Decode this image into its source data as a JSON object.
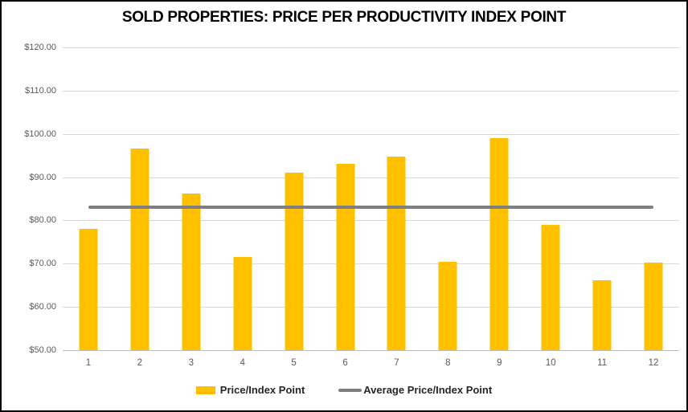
{
  "chart_data": {
    "type": "bar",
    "title": "SOLD PROPERTIES: PRICE PER PRODUCTIVITY INDEX POINT",
    "categories": [
      "1",
      "2",
      "3",
      "4",
      "5",
      "6",
      "7",
      "8",
      "9",
      "10",
      "11",
      "12"
    ],
    "series": [
      {
        "name": "Price/Index Point",
        "type": "bar",
        "color": "#FFC000",
        "values": [
          78.0,
          96.7,
          86.2,
          71.5,
          91.0,
          93.0,
          94.8,
          70.4,
          99.0,
          78.9,
          66.2,
          70.3
        ]
      },
      {
        "name": "Average Price/Index Point",
        "type": "line",
        "color": "#7F7F7F",
        "value": 83.0
      }
    ],
    "xlabel": "",
    "ylabel": "",
    "y_axis": {
      "min": 50,
      "max": 120,
      "step": 10,
      "tick_labels": [
        "$120.00",
        "$110.00",
        "$100.00",
        "$90.00",
        "$80.00",
        "$70.00",
        "$60.00",
        "$50.00"
      ]
    },
    "grid": true,
    "legend_position": "bottom",
    "colors": {
      "bar": "#FFC000",
      "average_line": "#7F7F7F",
      "gridline": "#D9D9D9",
      "axis_line": "#BFBFBF",
      "tick_text": "#595959",
      "title_text": "#000000",
      "legend_text": "#262626",
      "background": "#FFFFFF",
      "border": "#000000"
    }
  }
}
